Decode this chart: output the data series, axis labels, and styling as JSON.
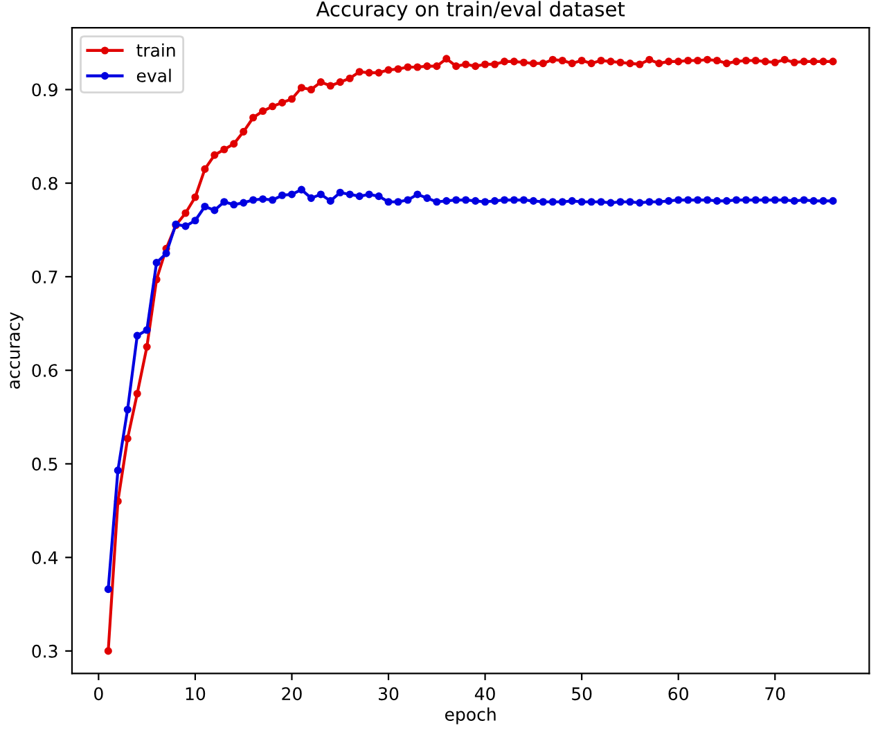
{
  "chart_data": {
    "type": "line",
    "title": "Accuracy on train/eval dataset",
    "xlabel": "epoch",
    "ylabel": "accuracy",
    "x": [
      1,
      2,
      3,
      4,
      5,
      6,
      7,
      8,
      9,
      10,
      11,
      12,
      13,
      14,
      15,
      16,
      17,
      18,
      19,
      20,
      21,
      22,
      23,
      24,
      25,
      26,
      27,
      28,
      29,
      30,
      31,
      32,
      33,
      34,
      35,
      36,
      37,
      38,
      39,
      40,
      41,
      42,
      43,
      44,
      45,
      46,
      47,
      48,
      49,
      50,
      51,
      52,
      53,
      54,
      55,
      56,
      57,
      58,
      59,
      60,
      61,
      62,
      63,
      64,
      65,
      66,
      67,
      68,
      69,
      70,
      71,
      72,
      73,
      74,
      75,
      76
    ],
    "series": [
      {
        "name": "train",
        "color": "#e00000",
        "values": [
          0.3,
          0.46,
          0.527,
          0.575,
          0.625,
          0.697,
          0.73,
          0.755,
          0.768,
          0.785,
          0.815,
          0.83,
          0.836,
          0.842,
          0.855,
          0.87,
          0.877,
          0.882,
          0.886,
          0.89,
          0.902,
          0.9,
          0.908,
          0.904,
          0.908,
          0.912,
          0.919,
          0.918,
          0.918,
          0.921,
          0.922,
          0.924,
          0.924,
          0.925,
          0.925,
          0.933,
          0.925,
          0.927,
          0.925,
          0.927,
          0.927,
          0.93,
          0.93,
          0.929,
          0.928,
          0.928,
          0.932,
          0.931,
          0.928,
          0.931,
          0.928,
          0.931,
          0.93,
          0.929,
          0.928,
          0.927,
          0.932,
          0.928,
          0.93,
          0.93,
          0.931,
          0.931,
          0.932,
          0.931,
          0.928,
          0.93,
          0.931,
          0.931,
          0.93,
          0.929,
          0.932,
          0.929,
          0.93,
          0.93,
          0.93,
          0.93
        ]
      },
      {
        "name": "eval",
        "color": "#0000e0",
        "values": [
          0.366,
          0.493,
          0.558,
          0.637,
          0.643,
          0.715,
          0.725,
          0.756,
          0.754,
          0.76,
          0.775,
          0.771,
          0.78,
          0.777,
          0.779,
          0.782,
          0.783,
          0.782,
          0.787,
          0.788,
          0.793,
          0.784,
          0.788,
          0.781,
          0.79,
          0.788,
          0.786,
          0.788,
          0.786,
          0.78,
          0.78,
          0.782,
          0.788,
          0.784,
          0.78,
          0.781,
          0.782,
          0.782,
          0.781,
          0.78,
          0.781,
          0.782,
          0.782,
          0.782,
          0.781,
          0.78,
          0.78,
          0.78,
          0.781,
          0.78,
          0.78,
          0.78,
          0.779,
          0.78,
          0.78,
          0.779,
          0.78,
          0.78,
          0.781,
          0.782,
          0.782,
          0.782,
          0.782,
          0.781,
          0.781,
          0.782,
          0.782,
          0.782,
          0.782,
          0.782,
          0.782,
          0.781,
          0.782,
          0.781,
          0.781,
          0.781
        ]
      }
    ],
    "xlim": [
      -2.75,
      79.75
    ],
    "xticks": [
      0,
      10,
      20,
      30,
      40,
      50,
      60,
      70
    ],
    "ylim": [
      0.276,
      0.966
    ],
    "yticks": [
      0.3,
      0.4,
      0.5,
      0.6,
      0.7,
      0.8,
      0.9
    ],
    "grid": false,
    "legend": "top left",
    "marker": "circle",
    "line_style": "solid"
  }
}
